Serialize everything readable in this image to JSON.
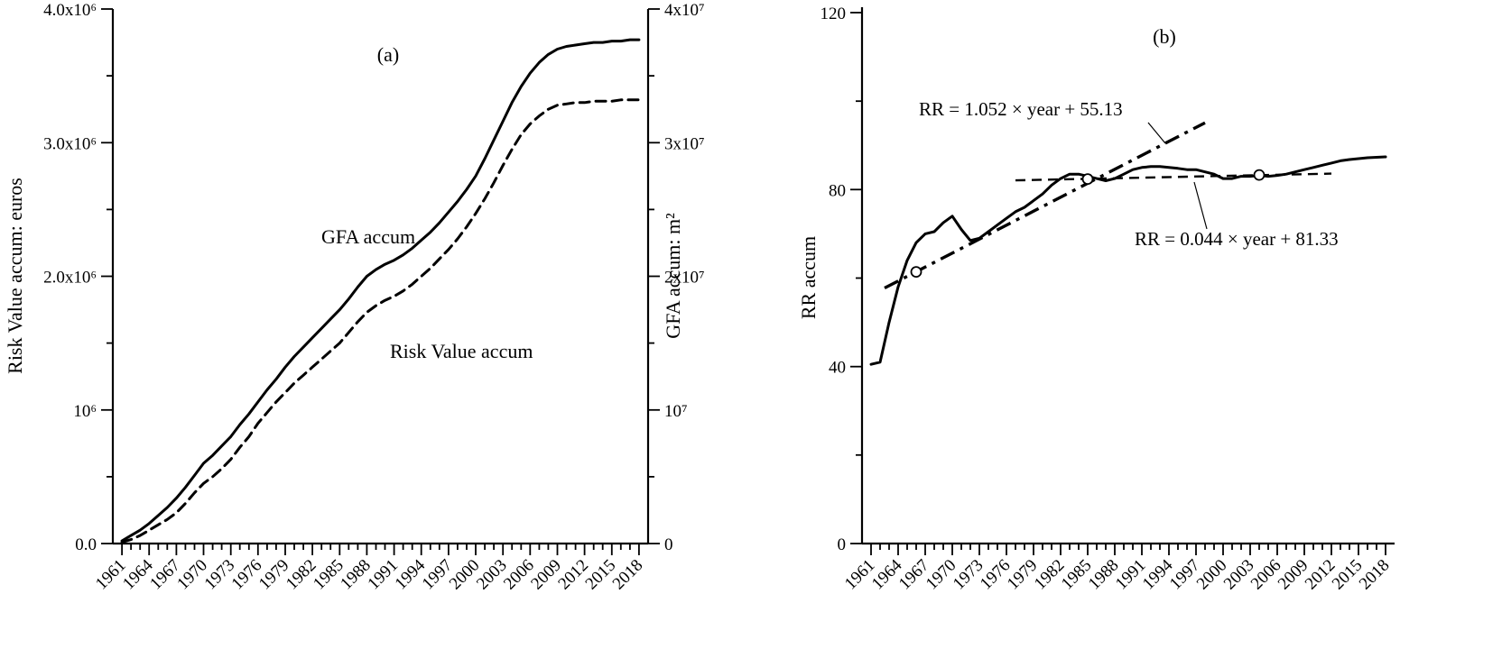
{
  "colors": {
    "ink": "#000000",
    "background": "#ffffff"
  },
  "chart_data": [
    {
      "type": "line",
      "panel_label": "(a)",
      "x_range": [
        1960,
        2019
      ],
      "x_ticks": [
        1961,
        1964,
        1967,
        1970,
        1973,
        1976,
        1979,
        1982,
        1985,
        1988,
        1991,
        1994,
        1997,
        2000,
        2003,
        2006,
        2009,
        2012,
        2015,
        2018
      ],
      "y_left": {
        "label": "Risk Value accum: euros",
        "unit": "10⁶ euros",
        "range": [
          0,
          4
        ],
        "tick_values": [
          0,
          1,
          2,
          3,
          4
        ],
        "tick_labels": [
          "0.0",
          "10⁶",
          "2.0x10⁶",
          "3.0x10⁶",
          "4.0x10⁶"
        ],
        "minor_ticks": [
          0.5,
          1.5,
          2.5,
          3.5
        ]
      },
      "y_right": {
        "label": "GFA accum: m²",
        "unit": "10⁷ m²",
        "range": [
          0,
          4
        ],
        "tick_values": [
          0,
          1,
          2,
          3,
          4
        ],
        "tick_labels": [
          "0",
          "10⁷",
          "2x10⁷",
          "3x10⁷",
          "4x10⁷"
        ],
        "minor_ticks": [
          0.5,
          1.5,
          2.5,
          3.5
        ]
      },
      "series": [
        {
          "name": "GFA accum",
          "axis": "right",
          "line_style": "solid",
          "unit": "10⁷ m²",
          "year_start": 1961,
          "values": [
            0.02,
            0.06,
            0.1,
            0.15,
            0.21,
            0.27,
            0.34,
            0.42,
            0.51,
            0.6,
            0.66,
            0.73,
            0.8,
            0.89,
            0.97,
            1.06,
            1.15,
            1.23,
            1.32,
            1.4,
            1.47,
            1.54,
            1.61,
            1.68,
            1.75,
            1.83,
            1.92,
            2.0,
            2.05,
            2.09,
            2.12,
            2.16,
            2.21,
            2.27,
            2.33,
            2.4,
            2.48,
            2.56,
            2.65,
            2.75,
            2.88,
            3.02,
            3.16,
            3.3,
            3.42,
            3.52,
            3.6,
            3.66,
            3.7,
            3.72,
            3.73,
            3.74,
            3.75,
            3.75,
            3.76,
            3.76,
            3.77,
            3.77
          ]
        },
        {
          "name": "Risk Value accum",
          "axis": "left",
          "line_style": "dashed",
          "unit": "10⁶ euros",
          "year_start": 1961,
          "values": [
            0.01,
            0.03,
            0.06,
            0.1,
            0.14,
            0.18,
            0.23,
            0.3,
            0.38,
            0.45,
            0.5,
            0.56,
            0.63,
            0.72,
            0.8,
            0.9,
            0.98,
            1.06,
            1.13,
            1.2,
            1.26,
            1.32,
            1.38,
            1.44,
            1.5,
            1.58,
            1.66,
            1.73,
            1.78,
            1.82,
            1.85,
            1.89,
            1.94,
            2.0,
            2.06,
            2.13,
            2.2,
            2.28,
            2.37,
            2.47,
            2.58,
            2.7,
            2.83,
            2.95,
            3.06,
            3.14,
            3.2,
            3.25,
            3.28,
            3.29,
            3.3,
            3.3,
            3.31,
            3.31,
            3.31,
            3.32,
            3.32,
            3.32
          ]
        }
      ]
    },
    {
      "type": "line",
      "panel_label": "(b)",
      "y_label": "RR accum",
      "x_range": [
        1960,
        2019
      ],
      "x_ticks": [
        1961,
        1964,
        1967,
        1970,
        1973,
        1976,
        1979,
        1982,
        1985,
        1988,
        1991,
        1994,
        1997,
        2000,
        2003,
        2006,
        2009,
        2012,
        2015,
        2018
      ],
      "y_range": [
        0,
        120
      ],
      "y_tick_values": [
        0,
        40,
        80,
        120
      ],
      "y_tick_labels": [
        "0",
        "40",
        "80",
        "120"
      ],
      "y_minor_ticks": [
        20,
        60,
        100
      ],
      "series": [
        {
          "name": "RR accum",
          "line_style": "solid",
          "year_start": 1961,
          "values": [
            40.5,
            41.0,
            50.0,
            58.0,
            64.0,
            68.0,
            70.0,
            70.5,
            72.5,
            74.0,
            71.0,
            68.5,
            69.0,
            70.5,
            72.0,
            73.5,
            75.0,
            76.0,
            77.5,
            79.0,
            81.0,
            82.5,
            83.5,
            83.5,
            83.0,
            82.5,
            82.0,
            82.5,
            83.5,
            84.5,
            85.0,
            85.2,
            85.2,
            85.0,
            84.8,
            84.5,
            84.5,
            84.0,
            83.5,
            82.5,
            82.5,
            83.0,
            83.0,
            83.2,
            83.0,
            83.2,
            83.5,
            84.0,
            84.5,
            85.0,
            85.5,
            86.0,
            86.5,
            86.8,
            87.0,
            87.2,
            87.3,
            87.4
          ]
        }
      ],
      "fit_lines": [
        {
          "equation": "RR = 1.052 × year + 55.13",
          "slope": 1.052,
          "intercept": 55.13,
          "year_origin": 1960,
          "line_style": "dashdot",
          "span_years": [
            1962.5,
            1998
          ]
        },
        {
          "equation": "RR = 0.044 × year + 81.33",
          "slope": 0.044,
          "intercept": 81.33,
          "year_origin": 1960,
          "line_style": "dashed",
          "span_years": [
            1977,
            2012
          ]
        }
      ],
      "markers": [
        {
          "year": 1966,
          "value": 61.4
        },
        {
          "year": 1985,
          "value": 82.4
        },
        {
          "year": 2004,
          "value": 83.3
        }
      ]
    }
  ]
}
